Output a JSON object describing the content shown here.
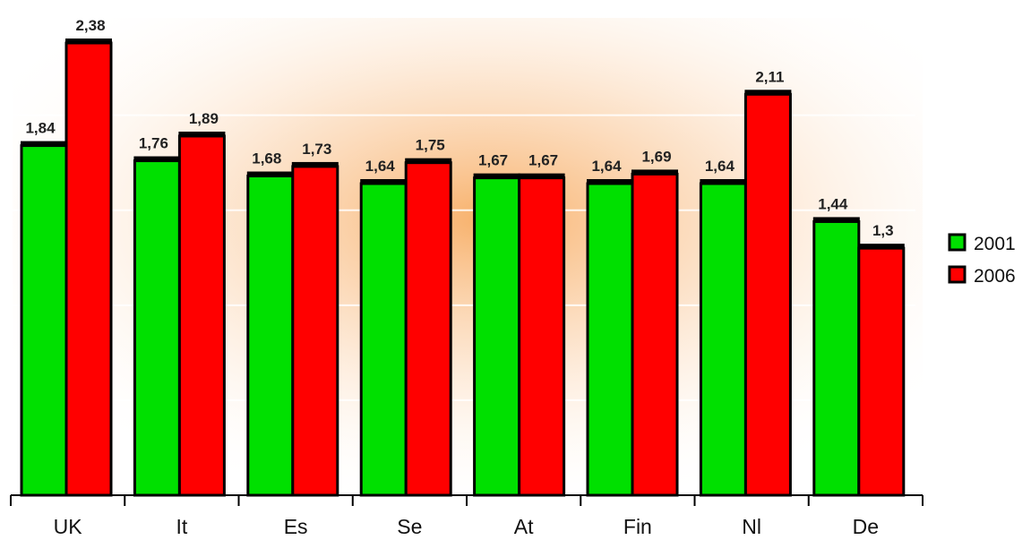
{
  "colors": {
    "series_2001": "#00e000",
    "series_2006": "#ff0000",
    "bar_outline": "#000000",
    "background_glow": "#f7a85a"
  },
  "chart_data": {
    "type": "bar",
    "categories": [
      "UK",
      "It",
      "Es",
      "Se",
      "At",
      "Fin",
      "Nl",
      "De"
    ],
    "series": [
      {
        "name": "2001",
        "values": [
          1.84,
          1.76,
          1.68,
          1.64,
          1.67,
          1.64,
          1.64,
          1.44
        ],
        "labels": [
          "1,84",
          "1,76",
          "1,68",
          "1,64",
          "1,67",
          "1,64",
          "1,64",
          "1,44"
        ]
      },
      {
        "name": "2006",
        "values": [
          2.38,
          1.89,
          1.73,
          1.75,
          1.67,
          1.69,
          2.11,
          1.3
        ],
        "labels": [
          "2,38",
          "1,89",
          "1,73",
          "1,75",
          "1,67",
          "1,69",
          "2,11",
          "1,3"
        ]
      }
    ],
    "ylim": [
      0,
      2.4
    ],
    "grid": true,
    "legend_position": "right"
  }
}
